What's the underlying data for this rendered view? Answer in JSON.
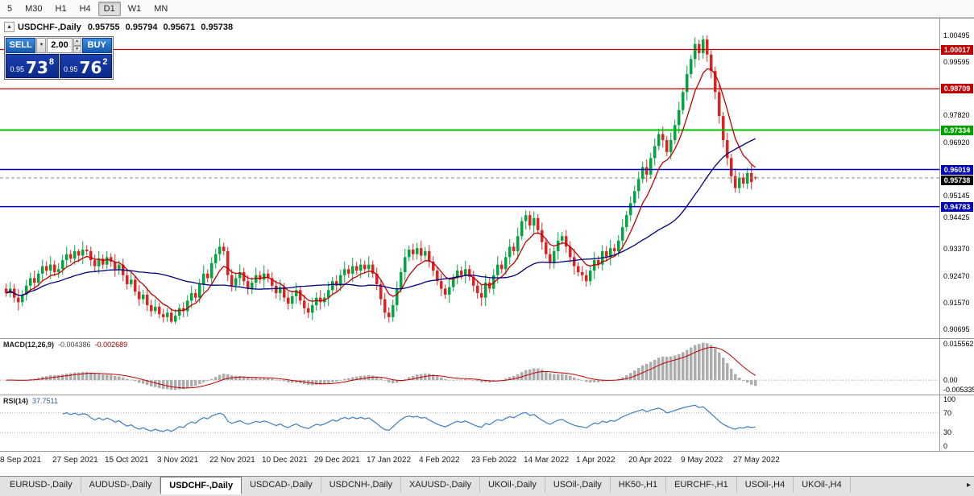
{
  "toolbar": {
    "timeframes": [
      {
        "label": "5",
        "active": false
      },
      {
        "label": "M30",
        "active": false
      },
      {
        "label": "H1",
        "active": false
      },
      {
        "label": "H4",
        "active": false
      },
      {
        "label": "D1",
        "active": true
      },
      {
        "label": "W1",
        "active": false
      },
      {
        "label": "MN",
        "active": false
      }
    ]
  },
  "chart_header": {
    "collapse_icon": "▲",
    "symbol": "USDCHF-,Daily",
    "open": "0.95755",
    "high": "0.95794",
    "low": "0.95671",
    "close": "0.95738"
  },
  "trade_panel": {
    "sell_label": "SELL",
    "buy_label": "BUY",
    "lot": "2.00",
    "drop_icon": "▼",
    "spin_up_icon": "▲",
    "spin_down_icon": "▼",
    "sell_price": {
      "prefix": "0.95",
      "big": "73",
      "pip": "8"
    },
    "buy_price": {
      "prefix": "0.95",
      "big": "76",
      "pip": "2"
    }
  },
  "price_axis": {
    "ticks": [
      "1.00495",
      "0.99595",
      "0.97820",
      "0.96920",
      "0.95145",
      "0.94425",
      "0.93370",
      "0.92470",
      "0.91570",
      "0.90695"
    ],
    "badges": [
      {
        "value": "1.00017",
        "color": "#c00000"
      },
      {
        "value": "0.98709",
        "color": "#c00000"
      },
      {
        "value": "0.97334",
        "color": "#00a000"
      },
      {
        "value": "0.96019",
        "color": "#0000b8"
      },
      {
        "value": "0.95738",
        "color": "#000000"
      },
      {
        "value": "0.94783",
        "color": "#0000b8"
      }
    ]
  },
  "macd_panel": {
    "title": "MACD(12,26,9)",
    "value_main": "-0.004386",
    "value_signal": "-0.002689",
    "axis_labels": [
      "0.015562",
      "0.00",
      "-0.005335"
    ]
  },
  "rsi_panel": {
    "title": "RSI(14)",
    "value": "37.7511",
    "axis_labels": [
      "100",
      "70",
      "30",
      "0"
    ]
  },
  "x_axis_labels": [
    "8 Sep 2021",
    "27 Sep 2021",
    "15 Oct 2021",
    "3 Nov 2021",
    "22 Nov 2021",
    "10 Dec 2021",
    "29 Dec 2021",
    "17 Jan 2022",
    "4 Feb 2022",
    "23 Feb 2022",
    "14 Mar 2022",
    "1 Apr 2022",
    "20 Apr 2022",
    "9 May 2022",
    "27 May 2022"
  ],
  "bottom_tabs": {
    "tabs": [
      "EURUSD-,Daily",
      "AUDUSD-,Daily",
      "USDCHF-,Daily",
      "USDCAD-,Daily",
      "USDCNH-,Daily",
      "XAUUSD-,Daily",
      "UKOil-,Daily",
      "USOil-,Daily",
      "HK50-,H1",
      "EURCHF-,H1",
      "USOil-,H4",
      "UKOil-,H4"
    ],
    "active_index": 2,
    "scroll_icon": "▸"
  },
  "chart_data": {
    "type": "candlestick",
    "symbol": "USDCHF",
    "timeframe": "Daily",
    "current_ohlc": {
      "open": 0.95755,
      "high": 0.95794,
      "low": 0.95671,
      "close": 0.95738
    },
    "y_range": [
      0.904,
      1.0105
    ],
    "up_color": "#00a63f",
    "down_color": "#dd2222",
    "x_label_indices": [
      0,
      13,
      26,
      39,
      52,
      65,
      78,
      91,
      104,
      117,
      130,
      143,
      156,
      169,
      182
    ],
    "overlays": [
      {
        "name": "ma-fast",
        "type": "ema",
        "period": 8,
        "color": "#c00000"
      },
      {
        "name": "ma-slow",
        "type": "sma",
        "period": 34,
        "color": "#000080"
      }
    ],
    "hlines": [
      {
        "price": 1.00017,
        "color": "#c00000",
        "width": 1.2,
        "style": "solid"
      },
      {
        "price": 0.98709,
        "color": "#c00000",
        "width": 1.2,
        "style": "solid"
      },
      {
        "price": 0.97334,
        "color": "#00c000",
        "width": 2,
        "style": "solid"
      },
      {
        "price": 0.96019,
        "color": "#0000b8",
        "width": 1.5,
        "style": "solid"
      },
      {
        "price": 0.94783,
        "color": "#0000b8",
        "width": 1.5,
        "style": "solid"
      },
      {
        "price": 0.95738,
        "color": "#888888",
        "width": 1,
        "style": "dashed"
      }
    ],
    "indicators": [
      {
        "name": "macd",
        "params": [
          12,
          26,
          9
        ],
        "current": [
          -0.004386,
          -0.002689
        ],
        "histogram_color": "#adadad",
        "signal_color": "#c00000"
      },
      {
        "name": "rsi",
        "params": [
          14
        ],
        "current": 37.7511,
        "line_color": "#3b7dc4",
        "levels": [
          70,
          30
        ],
        "level_color": "#b8b8b8"
      }
    ],
    "candles": [
      [
        0.9205,
        0.9222,
        0.9178,
        0.919
      ],
      [
        0.919,
        0.9227,
        0.9176,
        0.9205
      ],
      [
        0.9205,
        0.9221,
        0.9159,
        0.9175
      ],
      [
        0.9175,
        0.9203,
        0.9132,
        0.916
      ],
      [
        0.916,
        0.9199,
        0.9146,
        0.9185
      ],
      [
        0.9185,
        0.9235,
        0.9165,
        0.9215
      ],
      [
        0.9215,
        0.9258,
        0.9197,
        0.924
      ],
      [
        0.924,
        0.9265,
        0.92,
        0.9225
      ],
      [
        0.9225,
        0.9267,
        0.9213,
        0.9255
      ],
      [
        0.9255,
        0.9302,
        0.9233,
        0.928
      ],
      [
        0.928,
        0.9296,
        0.9249,
        0.9265
      ],
      [
        0.9265,
        0.9313,
        0.9237,
        0.9285
      ],
      [
        0.9285,
        0.9299,
        0.9246,
        0.926
      ],
      [
        0.926,
        0.929,
        0.924,
        0.927
      ],
      [
        0.927,
        0.9318,
        0.9252,
        0.93
      ],
      [
        0.93,
        0.9345,
        0.9275,
        0.932
      ],
      [
        0.932,
        0.9334,
        0.9291,
        0.9305
      ],
      [
        0.9305,
        0.935,
        0.9285,
        0.933
      ],
      [
        0.933,
        0.9337,
        0.9293,
        0.9315
      ],
      [
        0.9315,
        0.9363,
        0.9287,
        0.9335
      ],
      [
        0.9335,
        0.9349,
        0.9316,
        0.933
      ],
      [
        0.933,
        0.9345,
        0.928,
        0.93
      ],
      [
        0.93,
        0.9318,
        0.9262,
        0.928
      ],
      [
        0.928,
        0.933,
        0.9255,
        0.9305
      ],
      [
        0.9305,
        0.9319,
        0.9271,
        0.9285
      ],
      [
        0.9285,
        0.933,
        0.927,
        0.931
      ],
      [
        0.931,
        0.9323,
        0.9277,
        0.9295
      ],
      [
        0.9295,
        0.932,
        0.9245,
        0.927
      ],
      [
        0.927,
        0.9299,
        0.9251,
        0.9285
      ],
      [
        0.9285,
        0.9305,
        0.923,
        0.925
      ],
      [
        0.925,
        0.9268,
        0.9202,
        0.922
      ],
      [
        0.922,
        0.926,
        0.921,
        0.9235
      ],
      [
        0.9235,
        0.9249,
        0.9181,
        0.9195
      ],
      [
        0.9195,
        0.9217,
        0.9148,
        0.917
      ],
      [
        0.917,
        0.9201,
        0.9154,
        0.9185
      ],
      [
        0.9185,
        0.9205,
        0.913,
        0.915
      ],
      [
        0.915,
        0.9168,
        0.9112,
        0.913
      ],
      [
        0.913,
        0.917,
        0.912,
        0.9145
      ],
      [
        0.9145,
        0.9159,
        0.9106,
        0.912
      ],
      [
        0.912,
        0.9138,
        0.9092,
        0.911
      ],
      [
        0.911,
        0.9141,
        0.9094,
        0.9125
      ],
      [
        0.9125,
        0.9139,
        0.909,
        0.9095
      ],
      [
        0.9095,
        0.9137,
        0.9087,
        0.9115
      ],
      [
        0.9115,
        0.9154,
        0.9101,
        0.914
      ],
      [
        0.914,
        0.916,
        0.911,
        0.913
      ],
      [
        0.913,
        0.9183,
        0.9112,
        0.9165
      ],
      [
        0.9165,
        0.9215,
        0.914,
        0.919
      ],
      [
        0.919,
        0.9204,
        0.9161,
        0.9175
      ],
      [
        0.9175,
        0.9238,
        0.9157,
        0.922
      ],
      [
        0.922,
        0.9283,
        0.9192,
        0.9255
      ],
      [
        0.9255,
        0.9269,
        0.9226,
        0.924
      ],
      [
        0.924,
        0.931,
        0.922,
        0.929
      ],
      [
        0.929,
        0.9338,
        0.9272,
        0.932
      ],
      [
        0.932,
        0.9373,
        0.9297,
        0.9345
      ],
      [
        0.9345,
        0.9359,
        0.9316,
        0.933
      ],
      [
        0.933,
        0.9344,
        0.923,
        0.925
      ],
      [
        0.925,
        0.927,
        0.9195,
        0.9215
      ],
      [
        0.9215,
        0.9258,
        0.9197,
        0.924
      ],
      [
        0.924,
        0.9285,
        0.9215,
        0.926
      ],
      [
        0.926,
        0.9274,
        0.9216,
        0.923
      ],
      [
        0.923,
        0.925,
        0.9185,
        0.9205
      ],
      [
        0.9205,
        0.9243,
        0.9187,
        0.9225
      ],
      [
        0.9225,
        0.9275,
        0.92,
        0.925
      ],
      [
        0.925,
        0.9264,
        0.9221,
        0.9235
      ],
      [
        0.9235,
        0.9283,
        0.9207,
        0.9255
      ],
      [
        0.9255,
        0.9269,
        0.9226,
        0.924
      ],
      [
        0.924,
        0.926,
        0.9195,
        0.9215
      ],
      [
        0.9215,
        0.9233,
        0.9172,
        0.919
      ],
      [
        0.919,
        0.9235,
        0.9165,
        0.921
      ],
      [
        0.921,
        0.9224,
        0.9161,
        0.9175
      ],
      [
        0.9175,
        0.9195,
        0.9135,
        0.9155
      ],
      [
        0.9155,
        0.9198,
        0.9137,
        0.918
      ],
      [
        0.918,
        0.9225,
        0.9155,
        0.92
      ],
      [
        0.92,
        0.9214,
        0.9151,
        0.9165
      ],
      [
        0.9165,
        0.9185,
        0.912,
        0.914
      ],
      [
        0.914,
        0.9158,
        0.9107,
        0.9125
      ],
      [
        0.9125,
        0.9175,
        0.91,
        0.915
      ],
      [
        0.915,
        0.9193,
        0.9132,
        0.9175
      ],
      [
        0.9175,
        0.92,
        0.9135,
        0.916
      ],
      [
        0.916,
        0.9191,
        0.9144,
        0.9175
      ],
      [
        0.9175,
        0.9228,
        0.9147,
        0.92
      ],
      [
        0.92,
        0.9244,
        0.9186,
        0.923
      ],
      [
        0.923,
        0.925,
        0.9195,
        0.9215
      ],
      [
        0.9215,
        0.9268,
        0.9197,
        0.925
      ],
      [
        0.925,
        0.9295,
        0.9225,
        0.927
      ],
      [
        0.927,
        0.9284,
        0.9241,
        0.9255
      ],
      [
        0.9255,
        0.9308,
        0.9227,
        0.928
      ],
      [
        0.928,
        0.9294,
        0.9251,
        0.9265
      ],
      [
        0.9265,
        0.9305,
        0.924,
        0.9285
      ],
      [
        0.9285,
        0.9299,
        0.9256,
        0.927
      ],
      [
        0.927,
        0.9313,
        0.9242,
        0.9285
      ],
      [
        0.9285,
        0.9299,
        0.9241,
        0.9255
      ],
      [
        0.9255,
        0.9275,
        0.92,
        0.922
      ],
      [
        0.922,
        0.9234,
        0.915,
        0.917
      ],
      [
        0.917,
        0.919,
        0.9105,
        0.9125
      ],
      [
        0.9125,
        0.9143,
        0.9092,
        0.911
      ],
      [
        0.911,
        0.9168,
        0.9095,
        0.915
      ],
      [
        0.915,
        0.923,
        0.913,
        0.9205
      ],
      [
        0.9205,
        0.9274,
        0.9191,
        0.926
      ],
      [
        0.926,
        0.9338,
        0.9232,
        0.931
      ],
      [
        0.931,
        0.9349,
        0.9296,
        0.9335
      ],
      [
        0.9335,
        0.9355,
        0.93,
        0.932
      ],
      [
        0.932,
        0.9358,
        0.9302,
        0.934
      ],
      [
        0.934,
        0.9365,
        0.9295,
        0.9315
      ],
      [
        0.9315,
        0.9344,
        0.9301,
        0.933
      ],
      [
        0.933,
        0.935,
        0.9275,
        0.9295
      ],
      [
        0.9295,
        0.9313,
        0.9247,
        0.9265
      ],
      [
        0.9265,
        0.9279,
        0.9216,
        0.923
      ],
      [
        0.923,
        0.9255,
        0.918,
        0.9205
      ],
      [
        0.9205,
        0.9219,
        0.9171,
        0.9185
      ],
      [
        0.9185,
        0.9238,
        0.9157,
        0.921
      ],
      [
        0.921,
        0.9254,
        0.9196,
        0.924
      ],
      [
        0.924,
        0.9285,
        0.922,
        0.9265
      ],
      [
        0.9265,
        0.9279,
        0.9236,
        0.925
      ],
      [
        0.925,
        0.9298,
        0.9222,
        0.927
      ],
      [
        0.927,
        0.9284,
        0.9231,
        0.9245
      ],
      [
        0.9245,
        0.9265,
        0.9195,
        0.9215
      ],
      [
        0.9215,
        0.9233,
        0.9172,
        0.919
      ],
      [
        0.919,
        0.9218,
        0.9147,
        0.9175
      ],
      [
        0.9175,
        0.9253,
        0.9147,
        0.9225
      ],
      [
        0.9225,
        0.9239,
        0.9191,
        0.9205
      ],
      [
        0.9205,
        0.927,
        0.9185,
        0.925
      ],
      [
        0.925,
        0.9313,
        0.9222,
        0.9285
      ],
      [
        0.9285,
        0.9299,
        0.9256,
        0.927
      ],
      [
        0.927,
        0.9328,
        0.9252,
        0.931
      ],
      [
        0.931,
        0.937,
        0.9285,
        0.9345
      ],
      [
        0.9345,
        0.9359,
        0.9316,
        0.933
      ],
      [
        0.933,
        0.9408,
        0.9302,
        0.938
      ],
      [
        0.938,
        0.9444,
        0.9366,
        0.943
      ],
      [
        0.943,
        0.9466,
        0.9402,
        0.945
      ],
      [
        0.945,
        0.9464,
        0.9401,
        0.9415
      ],
      [
        0.9415,
        0.9462,
        0.939,
        0.944
      ],
      [
        0.944,
        0.9454,
        0.9386,
        0.94
      ],
      [
        0.94,
        0.9425,
        0.9335,
        0.936
      ],
      [
        0.936,
        0.9374,
        0.9306,
        0.932
      ],
      [
        0.932,
        0.934,
        0.927,
        0.929
      ],
      [
        0.929,
        0.9348,
        0.9272,
        0.933
      ],
      [
        0.933,
        0.9393,
        0.9302,
        0.9365
      ],
      [
        0.9365,
        0.9394,
        0.9351,
        0.938
      ],
      [
        0.938,
        0.94,
        0.9325,
        0.9345
      ],
      [
        0.9345,
        0.9363,
        0.9292,
        0.931
      ],
      [
        0.931,
        0.9338,
        0.9252,
        0.928
      ],
      [
        0.928,
        0.9294,
        0.9246,
        0.926
      ],
      [
        0.926,
        0.928,
        0.923,
        0.925
      ],
      [
        0.925,
        0.9268,
        0.9212,
        0.923
      ],
      [
        0.923,
        0.9279,
        0.9216,
        0.9265
      ],
      [
        0.9265,
        0.9328,
        0.9237,
        0.93
      ],
      [
        0.93,
        0.9314,
        0.9271,
        0.9285
      ],
      [
        0.9285,
        0.935,
        0.9265,
        0.933
      ],
      [
        0.933,
        0.9347,
        0.9296,
        0.931
      ],
      [
        0.931,
        0.9368,
        0.9282,
        0.934
      ],
      [
        0.934,
        0.9354,
        0.9316,
        0.933
      ],
      [
        0.933,
        0.9383,
        0.9312,
        0.9365
      ],
      [
        0.9365,
        0.9438,
        0.9337,
        0.941
      ],
      [
        0.941,
        0.9464,
        0.9396,
        0.945
      ],
      [
        0.945,
        0.9512,
        0.943,
        0.949
      ],
      [
        0.949,
        0.9548,
        0.9476,
        0.953
      ],
      [
        0.953,
        0.9595,
        0.9505,
        0.957
      ],
      [
        0.957,
        0.9628,
        0.9556,
        0.961
      ],
      [
        0.961,
        0.9635,
        0.956,
        0.9585
      ],
      [
        0.9585,
        0.9658,
        0.9571,
        0.964
      ],
      [
        0.964,
        0.9705,
        0.9615,
        0.968
      ],
      [
        0.968,
        0.9738,
        0.9666,
        0.972
      ],
      [
        0.972,
        0.9745,
        0.9675,
        0.97
      ],
      [
        0.97,
        0.9714,
        0.9646,
        0.966
      ],
      [
        0.966,
        0.9725,
        0.9635,
        0.97
      ],
      [
        0.97,
        0.9768,
        0.9686,
        0.975
      ],
      [
        0.975,
        0.9828,
        0.9722,
        0.98
      ],
      [
        0.98,
        0.9874,
        0.9786,
        0.986
      ],
      [
        0.986,
        0.9948,
        0.9832,
        0.992
      ],
      [
        0.992,
        0.9984,
        0.9906,
        0.997
      ],
      [
        0.997,
        1.0042,
        0.9942,
        1.002
      ],
      [
        1.002,
        1.0034,
        0.9966,
        0.999
      ],
      [
        0.999,
        1.0049,
        0.9971,
        1.0035
      ],
      [
        1.0035,
        1.0049,
        0.9961,
        0.9985
      ],
      [
        0.9985,
        0.9999,
        0.9906,
        0.993
      ],
      [
        0.993,
        0.9944,
        0.9836,
        0.986
      ],
      [
        0.986,
        0.9885,
        0.9755,
        0.978
      ],
      [
        0.978,
        0.9794,
        0.9676,
        0.97
      ],
      [
        0.97,
        0.9725,
        0.9615,
        0.964
      ],
      [
        0.964,
        0.9654,
        0.9556,
        0.958
      ],
      [
        0.958,
        0.9605,
        0.9525,
        0.954
      ],
      [
        0.954,
        0.9593,
        0.9522,
        0.9575
      ],
      [
        0.9575,
        0.9589,
        0.9541,
        0.9555
      ],
      [
        0.9555,
        0.9608,
        0.9537,
        0.959
      ],
      [
        0.959,
        0.9618,
        0.9536,
        0.956
      ],
      [
        0.9576,
        0.9579,
        0.9567,
        0.9574
      ]
    ]
  }
}
